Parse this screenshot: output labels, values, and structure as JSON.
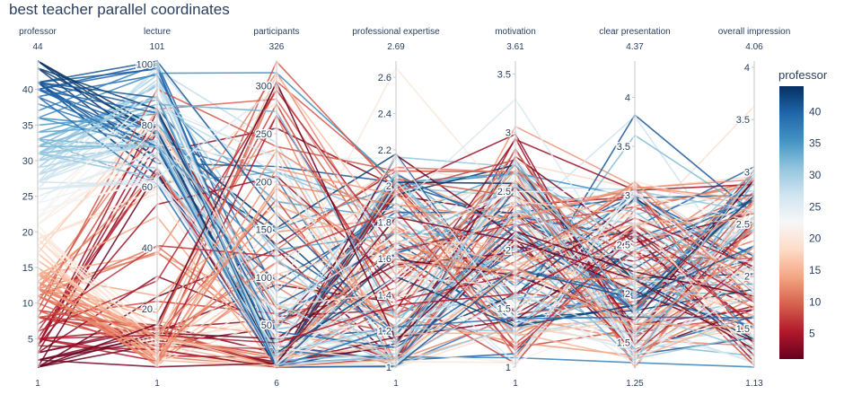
{
  "chart_data": {
    "type": "parallel_coordinates",
    "title": "best teacher parallel coordinates",
    "axes": [
      {
        "name": "professor",
        "min_label": "1",
        "max_label": "44",
        "range": [
          1,
          44
        ],
        "ticks": [
          5,
          10,
          15,
          20,
          25,
          30,
          35,
          40
        ]
      },
      {
        "name": "lecture",
        "min_label": "1",
        "max_label": "101",
        "range": [
          1,
          101
        ],
        "ticks": [
          20,
          40,
          60,
          80,
          100
        ]
      },
      {
        "name": "participants",
        "min_label": "6",
        "max_label": "326",
        "range": [
          6,
          326
        ],
        "ticks": [
          50,
          100,
          150,
          200,
          250,
          300
        ]
      },
      {
        "name": "professional expertise",
        "min_label": "1",
        "max_label": "2.69",
        "range": [
          1,
          2.69
        ],
        "ticks": [
          1,
          1.2,
          1.4,
          1.6,
          1.8,
          2,
          2.2,
          2.4,
          2.6
        ]
      },
      {
        "name": "motivation",
        "min_label": "1",
        "max_label": "3.61",
        "range": [
          1,
          3.61
        ],
        "ticks": [
          1,
          1.5,
          2,
          2.5,
          3,
          3.5
        ]
      },
      {
        "name": "clear presentation",
        "min_label": "1.25",
        "max_label": "4.37",
        "range": [
          1.25,
          4.37
        ],
        "ticks": [
          1.5,
          2,
          2.5,
          3,
          3.5,
          4
        ]
      },
      {
        "name": "overall impression",
        "min_label": "1.13",
        "max_label": "4.06",
        "range": [
          1.13,
          4.06
        ],
        "ticks": [
          1.5,
          2,
          2.5,
          3,
          3.5,
          4
        ]
      }
    ],
    "colorbar": {
      "title": "professor",
      "range": [
        1,
        44
      ],
      "ticks": [
        5,
        10,
        15,
        20,
        25,
        30,
        35,
        40
      ],
      "colorscale": [
        "#67001f",
        "#b2182b",
        "#d6604d",
        "#f4a582",
        "#fddbc7",
        "#f7f7f7",
        "#d1e5f0",
        "#92c5de",
        "#4393c3",
        "#2166ac",
        "#053061"
      ]
    }
  }
}
